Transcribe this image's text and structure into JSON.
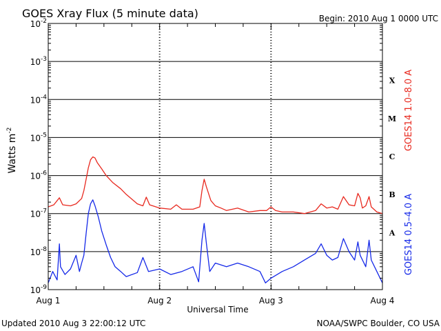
{
  "chart_data": {
    "type": "line",
    "title": "GOES Xray Flux (5 minute data)",
    "begin_label": "Begin:  2010 Aug 1 0000 UTC",
    "xlabel": "Universal Time",
    "ylabel": "Watts m",
    "ylabel_sup": "-2",
    "y_scale": "log",
    "ylim": [
      1e-09,
      0.01
    ],
    "y_ticks": [
      {
        "base": "10",
        "exp": "-9"
      },
      {
        "base": "10",
        "exp": "-8"
      },
      {
        "base": "10",
        "exp": "-7"
      },
      {
        "base": "10",
        "exp": "-6"
      },
      {
        "base": "10",
        "exp": "-5"
      },
      {
        "base": "10",
        "exp": "-4"
      },
      {
        "base": "10",
        "exp": "-3"
      },
      {
        "base": "10",
        "exp": "-2"
      }
    ],
    "x_ticks": [
      "Aug 1",
      "Aug 2",
      "Aug 3",
      "Aug 4"
    ],
    "xlim_days": [
      0,
      3
    ],
    "flare_classes": [
      "A",
      "B",
      "C",
      "M",
      "X"
    ],
    "grid": true,
    "series": [
      {
        "name": "GOES14 1.0–8.0 A",
        "color": "#e8281e",
        "points": [
          [
            0,
            1.5e-07
          ],
          [
            0.05,
            1.7e-07
          ],
          [
            0.1,
            2.6e-07
          ],
          [
            0.13,
            1.7e-07
          ],
          [
            0.2,
            1.6e-07
          ],
          [
            0.25,
            1.8e-07
          ],
          [
            0.3,
            2.5e-07
          ],
          [
            0.32,
            4e-07
          ],
          [
            0.34,
            8e-07
          ],
          [
            0.36,
            1.6e-06
          ],
          [
            0.38,
            2.6e-06
          ],
          [
            0.4,
            3.1e-06
          ],
          [
            0.42,
            2.9e-06
          ],
          [
            0.44,
            2.2e-06
          ],
          [
            0.48,
            1.5e-06
          ],
          [
            0.52,
            1e-06
          ],
          [
            0.58,
            6.5e-07
          ],
          [
            0.65,
            4.5e-07
          ],
          [
            0.7,
            3.2e-07
          ],
          [
            0.75,
            2.4e-07
          ],
          [
            0.8,
            1.8e-07
          ],
          [
            0.85,
            1.6e-07
          ],
          [
            0.88,
            2.7e-07
          ],
          [
            0.91,
            1.7e-07
          ],
          [
            1.0,
            1.4e-07
          ],
          [
            1.1,
            1.3e-07
          ],
          [
            1.15,
            1.7e-07
          ],
          [
            1.2,
            1.3e-07
          ],
          [
            1.3,
            1.3e-07
          ],
          [
            1.36,
            1.5e-07
          ],
          [
            1.38,
            4e-07
          ],
          [
            1.4,
            8e-07
          ],
          [
            1.42,
            5e-07
          ],
          [
            1.46,
            2.2e-07
          ],
          [
            1.5,
            1.6e-07
          ],
          [
            1.55,
            1.4e-07
          ],
          [
            1.6,
            1.2e-07
          ],
          [
            1.7,
            1.4e-07
          ],
          [
            1.8,
            1.1e-07
          ],
          [
            1.9,
            1.2e-07
          ],
          [
            1.96,
            1.2e-07
          ],
          [
            2.0,
            1.5e-07
          ],
          [
            2.04,
            1.2e-07
          ],
          [
            2.1,
            1.1e-07
          ],
          [
            2.2,
            1.1e-07
          ],
          [
            2.3,
            1e-07
          ],
          [
            2.4,
            1.2e-07
          ],
          [
            2.45,
            1.8e-07
          ],
          [
            2.5,
            1.4e-07
          ],
          [
            2.55,
            1.5e-07
          ],
          [
            2.6,
            1.3e-07
          ],
          [
            2.65,
            2.8e-07
          ],
          [
            2.7,
            1.7e-07
          ],
          [
            2.75,
            1.6e-07
          ],
          [
            2.78,
            3.4e-07
          ],
          [
            2.8,
            2.6e-07
          ],
          [
            2.82,
            1.4e-07
          ],
          [
            2.85,
            1.6e-07
          ],
          [
            2.88,
            2.8e-07
          ],
          [
            2.9,
            1.5e-07
          ],
          [
            2.95,
            1.1e-07
          ],
          [
            3.0,
            1e-07
          ]
        ]
      },
      {
        "name": "GOES14 0.5–4.0 A",
        "color": "#1428e8",
        "points": [
          [
            0,
            1.5e-09
          ],
          [
            0.04,
            3e-09
          ],
          [
            0.08,
            1.8e-09
          ],
          [
            0.1,
            1.6e-08
          ],
          [
            0.11,
            4e-09
          ],
          [
            0.15,
            2.5e-09
          ],
          [
            0.2,
            3.5e-09
          ],
          [
            0.25,
            8e-09
          ],
          [
            0.28,
            3e-09
          ],
          [
            0.3,
            5e-09
          ],
          [
            0.32,
            8e-09
          ],
          [
            0.34,
            3e-08
          ],
          [
            0.36,
            1e-07
          ],
          [
            0.38,
            1.8e-07
          ],
          [
            0.4,
            2.3e-07
          ],
          [
            0.42,
            1.6e-07
          ],
          [
            0.45,
            8e-08
          ],
          [
            0.48,
            3.5e-08
          ],
          [
            0.52,
            1.5e-08
          ],
          [
            0.56,
            7e-09
          ],
          [
            0.6,
            4e-09
          ],
          [
            0.65,
            3e-09
          ],
          [
            0.7,
            2.2e-09
          ],
          [
            0.8,
            2.8e-09
          ],
          [
            0.85,
            7e-09
          ],
          [
            0.9,
            3e-09
          ],
          [
            1.0,
            3.5e-09
          ],
          [
            1.1,
            2.5e-09
          ],
          [
            1.2,
            3e-09
          ],
          [
            1.3,
            4e-09
          ],
          [
            1.35,
            1.6e-09
          ],
          [
            1.38,
            2e-08
          ],
          [
            1.4,
            5.5e-08
          ],
          [
            1.42,
            1.6e-08
          ],
          [
            1.45,
            3e-09
          ],
          [
            1.5,
            5e-09
          ],
          [
            1.6,
            4e-09
          ],
          [
            1.7,
            5e-09
          ],
          [
            1.8,
            4e-09
          ],
          [
            1.9,
            3e-09
          ],
          [
            1.95,
            1.5e-09
          ],
          [
            2.0,
            2e-09
          ],
          [
            2.1,
            3e-09
          ],
          [
            2.2,
            4e-09
          ],
          [
            2.3,
            6e-09
          ],
          [
            2.4,
            9e-09
          ],
          [
            2.45,
            1.6e-08
          ],
          [
            2.5,
            8e-09
          ],
          [
            2.55,
            6e-09
          ],
          [
            2.6,
            7e-09
          ],
          [
            2.65,
            2.2e-08
          ],
          [
            2.7,
            1e-08
          ],
          [
            2.75,
            6e-09
          ],
          [
            2.78,
            1.8e-08
          ],
          [
            2.8,
            8e-09
          ],
          [
            2.85,
            4e-09
          ],
          [
            2.88,
            2e-08
          ],
          [
            2.9,
            6e-09
          ],
          [
            2.95,
            3e-09
          ],
          [
            3.0,
            1.5e-09
          ]
        ]
      }
    ]
  },
  "footer": {
    "updated": "Updated 2010 Aug  3 22:00:12 UTC",
    "credit": "NOAA/SWPC Boulder, CO USA"
  }
}
